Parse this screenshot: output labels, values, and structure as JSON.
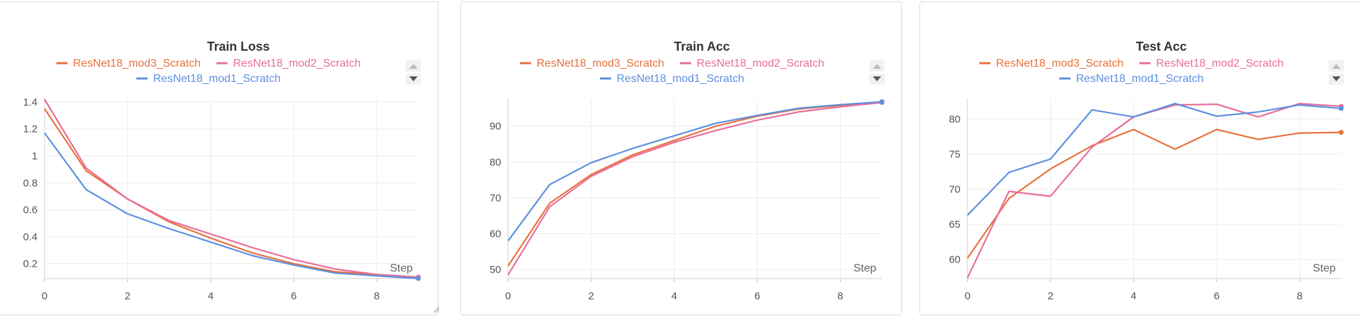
{
  "colors": {
    "mod3": "#e8703a",
    "mod2": "#e96d9a",
    "mod1": "#5b8fe0"
  },
  "legend": [
    {
      "key": "mod3",
      "label": "ResNet18_mod3_Scratch"
    },
    {
      "key": "mod2",
      "label": "ResNet18_mod2_Scratch"
    },
    {
      "key": "mod1",
      "label": "ResNet18_mod1_Scratch"
    }
  ],
  "chart_data": [
    {
      "type": "line",
      "title": "Train Loss",
      "xlabel": "Step",
      "ylabel": "",
      "x": [
        0,
        1,
        2,
        3,
        4,
        5,
        6,
        7,
        8,
        9
      ],
      "xticks": [
        "0",
        "2",
        "4",
        "6",
        "8"
      ],
      "yticks": [
        "0.2",
        "0.4",
        "0.6",
        "0.8",
        "1",
        "1.2",
        "1.4"
      ],
      "xlim": [
        0,
        9
      ],
      "ylim": [
        0.09,
        1.42
      ],
      "grid": true,
      "series": [
        {
          "name": "ResNet18_mod3_Scratch",
          "key": "mod3",
          "values": [
            1.35,
            0.89,
            0.68,
            0.51,
            0.39,
            0.28,
            0.2,
            0.14,
            0.12,
            0.1
          ]
        },
        {
          "name": "ResNet18_mod2_Scratch",
          "key": "mod2",
          "values": [
            1.42,
            0.91,
            0.68,
            0.52,
            0.42,
            0.32,
            0.23,
            0.16,
            0.12,
            0.1
          ]
        },
        {
          "name": "ResNet18_mod1_Scratch",
          "key": "mod1",
          "values": [
            1.17,
            0.75,
            0.57,
            0.46,
            0.36,
            0.26,
            0.19,
            0.13,
            0.11,
            0.09
          ]
        }
      ]
    },
    {
      "type": "line",
      "title": "Train Acc",
      "xlabel": "Step",
      "ylabel": "",
      "x": [
        0,
        1,
        2,
        3,
        4,
        5,
        6,
        7,
        8,
        9
      ],
      "xticks": [
        "0",
        "2",
        "4",
        "6",
        "8"
      ],
      "yticks": [
        "50",
        "60",
        "70",
        "80",
        "90"
      ],
      "xlim": [
        0,
        9
      ],
      "ylim": [
        47.5,
        97.5
      ],
      "grid": true,
      "series": [
        {
          "name": "ResNet18_mod3_Scratch",
          "key": "mod3",
          "values": [
            51,
            68.5,
            76.5,
            82,
            86,
            90,
            92.8,
            94.8,
            95.8,
            96.8
          ]
        },
        {
          "name": "ResNet18_mod2_Scratch",
          "key": "mod2",
          "values": [
            48.5,
            67.5,
            76,
            81.5,
            85.5,
            88.8,
            91.7,
            94,
            95.4,
            96.6
          ]
        },
        {
          "name": "ResNet18_mod1_Scratch",
          "key": "mod1",
          "values": [
            58,
            73.7,
            79.8,
            83.8,
            87.3,
            90.8,
            93,
            95,
            96,
            96.8
          ]
        }
      ]
    },
    {
      "type": "line",
      "title": "Test Acc",
      "xlabel": "Step",
      "ylabel": "",
      "x": [
        0,
        1,
        2,
        3,
        4,
        5,
        6,
        7,
        8,
        9
      ],
      "xticks": [
        "0",
        "2",
        "4",
        "6",
        "8"
      ],
      "yticks": [
        "60",
        "65",
        "70",
        "75",
        "80"
      ],
      "xlim": [
        0,
        9
      ],
      "ylim": [
        57.3,
        82.8
      ],
      "grid": true,
      "series": [
        {
          "name": "ResNet18_mod3_Scratch",
          "key": "mod3",
          "values": [
            60.2,
            68.7,
            72.9,
            76.2,
            78.5,
            75.7,
            78.5,
            77.1,
            78,
            78.1
          ]
        },
        {
          "name": "ResNet18_mod2_Scratch",
          "key": "mod2",
          "values": [
            57.4,
            69.7,
            69,
            76,
            80.3,
            82,
            82.1,
            80.3,
            82.2,
            81.8
          ]
        },
        {
          "name": "ResNet18_mod1_Scratch",
          "key": "mod1",
          "values": [
            66.3,
            72.4,
            74.3,
            81.3,
            80.3,
            82.2,
            80.4,
            81,
            82,
            81.5
          ]
        }
      ]
    }
  ]
}
